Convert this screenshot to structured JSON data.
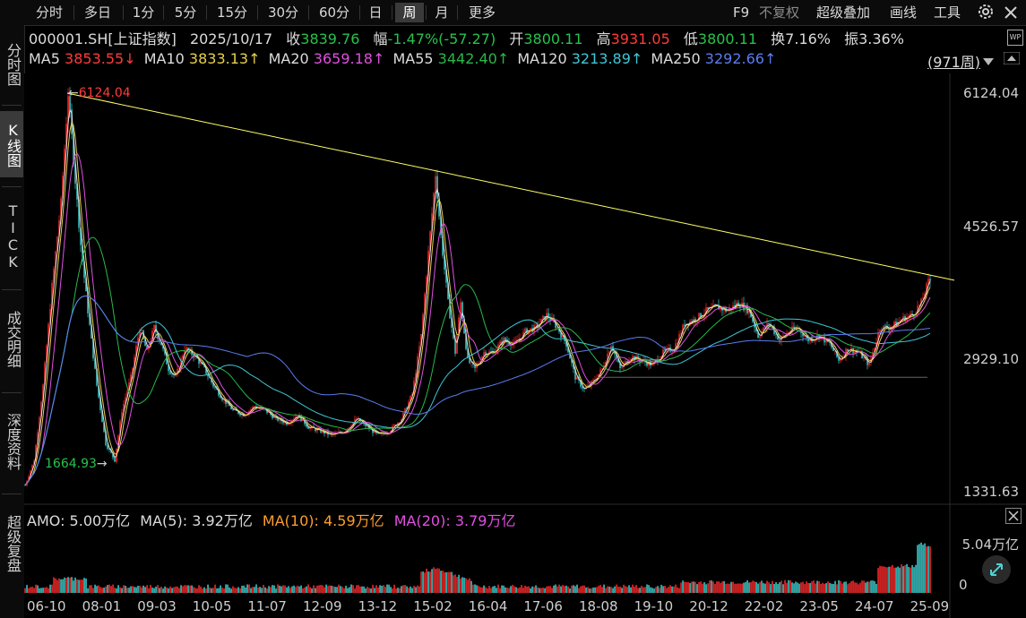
{
  "toolbar": {
    "tabs": [
      "分时",
      "多日",
      "1分",
      "5分",
      "15分",
      "30分",
      "60分",
      "日",
      "周",
      "月",
      "更多"
    ],
    "active_tab": "周",
    "f9": "F9",
    "adjust": "不复权",
    "overlay": "超级叠加",
    "draw": "画线",
    "tools": "工具",
    "settings_icon": "gear-icon"
  },
  "sidebar": {
    "items": [
      "分时图",
      "K线图",
      "TICK",
      "成交明细",
      "深度资料",
      "超级复盘"
    ],
    "active": "K线图"
  },
  "quote": {
    "symbol": "000001.SH[上证指数]",
    "date": "2025/10/17",
    "close_label": "收",
    "close": "3839.76",
    "change_label": "幅",
    "change": "-1.47%(-57.27)",
    "open_label": "开",
    "open": "3800.11",
    "high_label": "高",
    "high": "3931.05",
    "low_label": "低",
    "low": "3800.11",
    "turnover_label": "换",
    "turnover": "7.16%",
    "amplitude_label": "振",
    "amplitude": "3.36%"
  },
  "ma": {
    "ma5_label": "MA5",
    "ma5": "3853.55↓",
    "ma10_label": "MA10",
    "ma10": "3833.13↑",
    "ma20_label": "MA20",
    "ma20": "3659.18↑",
    "ma55_label": "MA55",
    "ma55": "3442.40↑",
    "ma120_label": "MA120",
    "ma120": "3213.89↑",
    "ma250_label": "MA250",
    "ma250": "3292.66↑",
    "period": "(971周)"
  },
  "colors": {
    "up": "#ff2b2b",
    "down": "#3fd0d0",
    "ma5": "#e0e0e0",
    "ma10": "#e8d04a",
    "ma20": "#e050e0",
    "ma55": "#29b84a",
    "ma120": "#3fc7d6",
    "ma250": "#5b7cf0",
    "trendline": "#ffff66"
  },
  "annotations": {
    "high": "6124.04",
    "low": "1664.93"
  },
  "chart_data": {
    "type": "candlestick",
    "y_ticks": [
      "6124.04",
      "4526.57",
      "2929.10",
      "1331.63"
    ],
    "x_ticks": [
      "06-10",
      "08-01",
      "09-03",
      "10-05",
      "11-07",
      "12-09",
      "13-12",
      "15-02",
      "16-04",
      "17-06",
      "18-08",
      "19-10",
      "20-12",
      "22-02",
      "23-05",
      "24-07",
      "25-09"
    ],
    "ylim": [
      1331.63,
      6124.04
    ],
    "trendline_from": [
      "2007-10",
      6124.04
    ],
    "close_path": [
      [
        0,
        1400
      ],
      [
        10,
        1700
      ],
      [
        20,
        2600
      ],
      [
        30,
        3800
      ],
      [
        40,
        4800
      ],
      [
        48,
        6124
      ],
      [
        55,
        5200
      ],
      [
        62,
        4300
      ],
      [
        70,
        3500
      ],
      [
        80,
        2600
      ],
      [
        90,
        1900
      ],
      [
        100,
        1700
      ],
      [
        108,
        2300
      ],
      [
        118,
        2700
      ],
      [
        128,
        3300
      ],
      [
        136,
        3000
      ],
      [
        144,
        3300
      ],
      [
        152,
        3100
      ],
      [
        160,
        2800
      ],
      [
        168,
        2700
      ],
      [
        178,
        3050
      ],
      [
        190,
        2950
      ],
      [
        200,
        2800
      ],
      [
        210,
        2600
      ],
      [
        220,
        2450
      ],
      [
        232,
        2300
      ],
      [
        244,
        2250
      ],
      [
        256,
        2350
      ],
      [
        268,
        2300
      ],
      [
        280,
        2200
      ],
      [
        292,
        2150
      ],
      [
        304,
        2250
      ],
      [
        316,
        2100
      ],
      [
        330,
        2050
      ],
      [
        342,
        2000
      ],
      [
        356,
        2050
      ],
      [
        370,
        2200
      ],
      [
        382,
        2100
      ],
      [
        394,
        2000
      ],
      [
        406,
        2050
      ],
      [
        420,
        2200
      ],
      [
        432,
        2500
      ],
      [
        442,
        3200
      ],
      [
        450,
        4200
      ],
      [
        458,
        5150
      ],
      [
        464,
        4400
      ],
      [
        472,
        3600
      ],
      [
        480,
        3000
      ],
      [
        486,
        3600
      ],
      [
        494,
        2900
      ],
      [
        502,
        2800
      ],
      [
        512,
        3000
      ],
      [
        522,
        3000
      ],
      [
        534,
        3150
      ],
      [
        546,
        3100
      ],
      [
        558,
        3250
      ],
      [
        570,
        3300
      ],
      [
        582,
        3450
      ],
      [
        594,
        3300
      ],
      [
        604,
        3100
      ],
      [
        614,
        2700
      ],
      [
        624,
        2550
      ],
      [
        634,
        2650
      ],
      [
        644,
        2800
      ],
      [
        654,
        3100
      ],
      [
        664,
        2800
      ],
      [
        676,
        2950
      ],
      [
        688,
        2900
      ],
      [
        700,
        2850
      ],
      [
        712,
        3000
      ],
      [
        724,
        3050
      ],
      [
        736,
        3350
      ],
      [
        748,
        3400
      ],
      [
        760,
        3500
      ],
      [
        772,
        3550
      ],
      [
        784,
        3500
      ],
      [
        796,
        3600
      ],
      [
        808,
        3500
      ],
      [
        818,
        3200
      ],
      [
        830,
        3350
      ],
      [
        842,
        3150
      ],
      [
        852,
        3250
      ],
      [
        862,
        3300
      ],
      [
        874,
        3150
      ],
      [
        886,
        3200
      ],
      [
        898,
        3100
      ],
      [
        908,
        2900
      ],
      [
        918,
        3050
      ],
      [
        930,
        3000
      ],
      [
        942,
        2850
      ],
      [
        954,
        3300
      ],
      [
        966,
        3300
      ],
      [
        978,
        3400
      ],
      [
        990,
        3450
      ],
      [
        1000,
        3600
      ],
      [
        1008,
        3850
      ],
      [
        1014,
        3900
      ]
    ],
    "amo": {
      "label": "AMO:",
      "value": "5.00万亿",
      "ma5_label": "MA(5):",
      "ma5": "3.92万亿",
      "ma10_label": "MA(10):",
      "ma10": "4.59万亿",
      "ma20_label": "MA(20):",
      "ma20": "3.79万亿"
    },
    "amo_ticks": [
      "5.04万亿",
      "0"
    ]
  }
}
